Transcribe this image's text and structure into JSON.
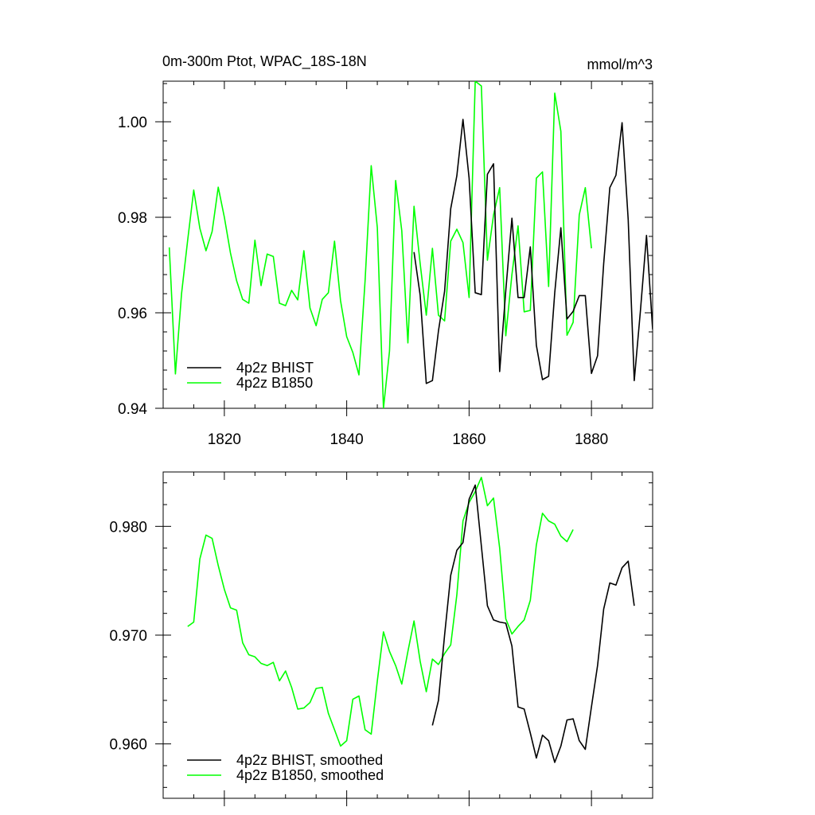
{
  "chart_data": [
    {
      "type": "line",
      "title": "0m-300m Ptot, WPAC_18S-18N",
      "units": "mmol/m^3",
      "xlim": [
        1810,
        1890
      ],
      "ylim": [
        0.94,
        1.0085
      ],
      "xticks": [
        1820,
        1840,
        1860,
        1880
      ],
      "xtick_labels": [
        "1820",
        "1840",
        "1860",
        "1880"
      ],
      "yticks": [
        0.94,
        0.96,
        0.98,
        1.0
      ],
      "ytick_labels": [
        "0.94",
        "0.96",
        "0.98",
        "1.00"
      ],
      "legend_position": "bottom-left",
      "series": [
        {
          "name": "4p2z BHIST",
          "color": "#000000",
          "x": [
            1851,
            1852,
            1853,
            1854,
            1855,
            1856,
            1857,
            1858,
            1859,
            1860,
            1861,
            1862,
            1863,
            1864,
            1865,
            1866,
            1867,
            1868,
            1869,
            1870,
            1871,
            1872,
            1873,
            1874,
            1875,
            1876,
            1877,
            1878,
            1879,
            1880,
            1881,
            1882,
            1883,
            1884,
            1885,
            1886,
            1887,
            1888,
            1889,
            1890
          ],
          "values": [
            0.9727,
            0.9637,
            0.9452,
            0.9458,
            0.9562,
            0.9645,
            0.9818,
            0.9887,
            1.0005,
            0.9882,
            0.9642,
            0.9638,
            0.989,
            0.9912,
            0.9477,
            0.9647,
            0.9798,
            0.9632,
            0.9632,
            0.9738,
            0.9532,
            0.946,
            0.9467,
            0.9642,
            0.9778,
            0.9587,
            0.9603,
            0.9636,
            0.9636,
            0.9473,
            0.951,
            0.9703,
            0.9862,
            0.9888,
            0.9998,
            0.9795,
            0.9458,
            0.9603,
            0.9762,
            0.9565
          ]
        },
        {
          "name": "4p2z B1850",
          "color": "#00ff00",
          "x": [
            1811,
            1812,
            1813,
            1814,
            1815,
            1816,
            1817,
            1818,
            1819,
            1820,
            1821,
            1822,
            1823,
            1824,
            1825,
            1826,
            1827,
            1828,
            1829,
            1830,
            1831,
            1832,
            1833,
            1834,
            1835,
            1836,
            1837,
            1838,
            1839,
            1840,
            1841,
            1842,
            1843,
            1844,
            1845,
            1846,
            1847,
            1848,
            1849,
            1850,
            1851,
            1852,
            1853,
            1854,
            1855,
            1856,
            1857,
            1858,
            1859,
            1860,
            1861,
            1862,
            1863,
            1864,
            1865,
            1866,
            1867,
            1868,
            1869,
            1870,
            1871,
            1872,
            1873,
            1874,
            1875,
            1876,
            1877,
            1878,
            1879,
            1880
          ],
          "values": [
            0.9737,
            0.9472,
            0.964,
            0.9752,
            0.9857,
            0.9777,
            0.973,
            0.977,
            0.9863,
            0.98,
            0.9725,
            0.9667,
            0.9628,
            0.962,
            0.9752,
            0.9657,
            0.9723,
            0.9718,
            0.962,
            0.9615,
            0.9647,
            0.9627,
            0.973,
            0.961,
            0.9573,
            0.9628,
            0.9642,
            0.975,
            0.9625,
            0.955,
            0.9517,
            0.947,
            0.9667,
            0.9908,
            0.9778,
            0.94,
            0.952,
            0.9877,
            0.9772,
            0.9537,
            0.9823,
            0.9703,
            0.9595,
            0.9735,
            0.9595,
            0.9583,
            0.975,
            0.9775,
            0.9747,
            0.9632,
            1.0085,
            1.0075,
            0.971,
            0.9805,
            0.9862,
            0.9552,
            0.968,
            0.9782,
            0.9602,
            0.9605,
            0.9882,
            0.9895,
            0.9655,
            1.006,
            0.998,
            0.9553,
            0.958,
            0.9805,
            0.9862,
            0.9735
          ]
        }
      ]
    },
    {
      "type": "line",
      "xlim": [
        1810,
        1890
      ],
      "ylim": [
        0.955,
        0.985
      ],
      "xticks": [
        1820,
        1840,
        1860,
        1880
      ],
      "yticks": [
        0.96,
        0.97,
        0.98
      ],
      "ytick_labels": [
        "0.960",
        "0.970",
        "0.980"
      ],
      "legend_position": "bottom-left",
      "series": [
        {
          "name": "4p2z BHIST, smoothed",
          "color": "#000000",
          "x": [
            1854,
            1855,
            1856,
            1857,
            1858,
            1859,
            1860,
            1861,
            1862,
            1863,
            1864,
            1865,
            1866,
            1867,
            1868,
            1869,
            1870,
            1871,
            1872,
            1873,
            1874,
            1875,
            1876,
            1877,
            1878,
            1879,
            1880,
            1881,
            1882,
            1883,
            1884,
            1885,
            1886,
            1887
          ],
          "values": [
            0.9617,
            0.964,
            0.97,
            0.9755,
            0.9778,
            0.9785,
            0.9825,
            0.9838,
            0.9782,
            0.9727,
            0.9714,
            0.9712,
            0.9711,
            0.969,
            0.9634,
            0.9632,
            0.961,
            0.9587,
            0.9608,
            0.9603,
            0.9583,
            0.9598,
            0.9622,
            0.9623,
            0.9603,
            0.9595,
            0.9634,
            0.9672,
            0.9724,
            0.9748,
            0.9746,
            0.9762,
            0.9768,
            0.9727
          ]
        },
        {
          "name": "4p2z B1850, smoothed",
          "color": "#00ff00",
          "x": [
            1814,
            1815,
            1816,
            1817,
            1818,
            1819,
            1820,
            1821,
            1822,
            1823,
            1824,
            1825,
            1826,
            1827,
            1828,
            1829,
            1830,
            1831,
            1832,
            1833,
            1834,
            1835,
            1836,
            1837,
            1838,
            1839,
            1840,
            1841,
            1842,
            1843,
            1844,
            1845,
            1846,
            1847,
            1848,
            1849,
            1850,
            1851,
            1852,
            1853,
            1854,
            1855,
            1856,
            1857,
            1858,
            1859,
            1860,
            1861,
            1862,
            1863,
            1864,
            1865,
            1866,
            1867,
            1868,
            1869,
            1870,
            1871,
            1872,
            1873,
            1874,
            1875,
            1876,
            1877
          ],
          "values": [
            0.9708,
            0.9712,
            0.977,
            0.9792,
            0.9789,
            0.9764,
            0.9742,
            0.9725,
            0.9723,
            0.9693,
            0.9682,
            0.968,
            0.9674,
            0.9672,
            0.9675,
            0.9658,
            0.9667,
            0.9652,
            0.9632,
            0.9633,
            0.9638,
            0.9651,
            0.9652,
            0.9628,
            0.9613,
            0.9598,
            0.9603,
            0.9641,
            0.9644,
            0.9613,
            0.9609,
            0.9658,
            0.9703,
            0.9685,
            0.9672,
            0.9655,
            0.9685,
            0.9713,
            0.9676,
            0.9648,
            0.9678,
            0.9673,
            0.9683,
            0.9691,
            0.9737,
            0.9805,
            0.9822,
            0.9832,
            0.9845,
            0.9819,
            0.9826,
            0.978,
            0.9715,
            0.9701,
            0.9708,
            0.9714,
            0.9732,
            0.9783,
            0.9812,
            0.9805,
            0.9802,
            0.9791,
            0.9786,
            0.9797
          ]
        }
      ]
    }
  ]
}
